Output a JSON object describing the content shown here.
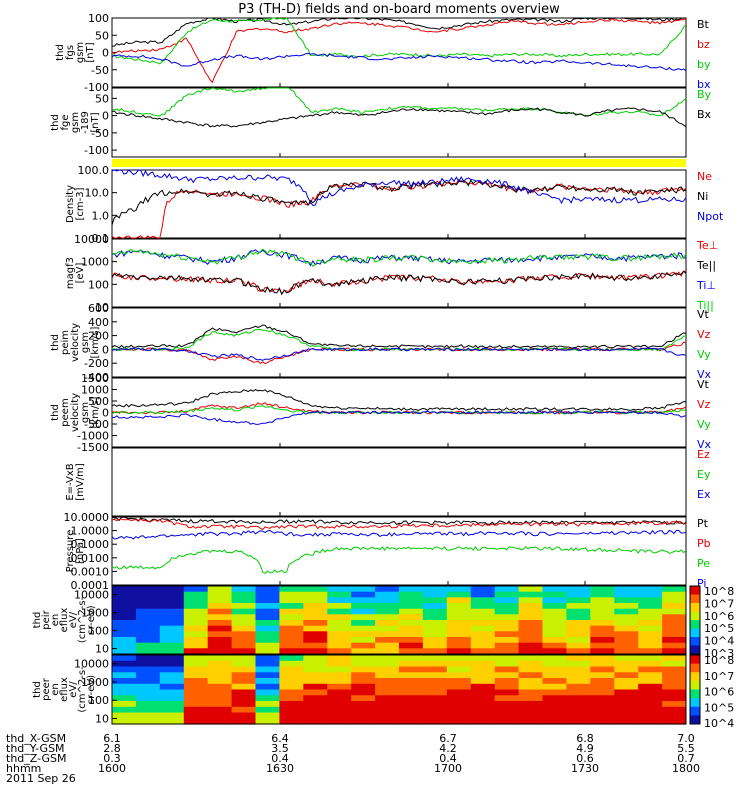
{
  "title": "P3 (TH-D) fields and on-board moments overview",
  "chart_data": {
    "type": "multi-panel-timeseries",
    "x_ticks": [
      "1600",
      "1630",
      "1700",
      "1730",
      "1800"
    ],
    "footer": {
      "rows": [
        {
          "label": "thd_X-GSM",
          "values": [
            "6.1",
            "6.4",
            "6.7",
            "6.8",
            "7.0"
          ]
        },
        {
          "label": "thd_Y-GSM",
          "values": [
            "2.8",
            "3.5",
            "4.2",
            "4.9",
            "5.5"
          ]
        },
        {
          "label": "thd_Z-GSM",
          "values": [
            "0.3",
            "0.4",
            "0.4",
            "0.6",
            "0.7"
          ]
        },
        {
          "label": "hhmm",
          "values": [
            "1600",
            "1630",
            "1700",
            "1730",
            "1800"
          ]
        }
      ],
      "date": "2011 Sep 26"
    },
    "panels": [
      {
        "ylabel": [
          "thd",
          "fgs",
          "gsm",
          "[nT]"
        ],
        "yticks": [
          "100",
          "50",
          "0",
          "-50",
          "-100"
        ],
        "ylim": [
          -100,
          100
        ],
        "series": [
          {
            "name": "Bt",
            "color": "#000000",
            "values": [
              20,
              30,
              30,
              85,
              100,
              90,
              95,
              80,
              90,
              100,
              100,
              95,
              85,
              70,
              80,
              90,
              95,
              95,
              90,
              100,
              100,
              100,
              95,
              100
            ]
          },
          {
            "name": "bz",
            "color": "#e60000",
            "values": [
              0,
              5,
              10,
              40,
              -90,
              60,
              70,
              60,
              70,
              85,
              85,
              80,
              70,
              60,
              70,
              80,
              90,
              85,
              80,
              90,
              95,
              90,
              85,
              95
            ]
          },
          {
            "name": "by",
            "color": "#00cc00",
            "values": [
              -10,
              -20,
              -30,
              60,
              95,
              90,
              95,
              100,
              -10,
              -5,
              -10,
              -5,
              -5,
              -10,
              -5,
              -10,
              -5,
              -5,
              -10,
              -5,
              -5,
              -5,
              -5,
              80
            ]
          },
          {
            "name": "bx",
            "color": "#0000e6",
            "values": [
              -10,
              -10,
              -20,
              -40,
              -20,
              -10,
              -20,
              -10,
              -5,
              -10,
              -15,
              -20,
              -15,
              -10,
              -15,
              -20,
              -25,
              -30,
              -25,
              -30,
              -35,
              -40,
              -45,
              -50
            ]
          }
        ]
      },
      {
        "ylabel": [
          "thd",
          "fge",
          "gsm",
          "-189",
          "[nT]"
        ],
        "yticks": [
          "50",
          "0",
          "-50",
          "-100"
        ],
        "ylim": [
          -120,
          80
        ],
        "series": [
          {
            "name": "By",
            "color": "#00cc00",
            "values": [
              20,
              10,
              0,
              60,
              80,
              70,
              80,
              90,
              10,
              20,
              10,
              20,
              25,
              20,
              20,
              15,
              20,
              20,
              10,
              0,
              10,
              10,
              0,
              50
            ]
          },
          {
            "name": "Bx",
            "color": "#000000",
            "values": [
              10,
              0,
              -10,
              -20,
              -30,
              -30,
              -20,
              -10,
              0,
              10,
              0,
              10,
              20,
              15,
              10,
              5,
              15,
              20,
              10,
              0,
              15,
              20,
              10,
              -30
            ]
          }
        ]
      },
      {
        "ylabel": [
          "Density",
          "[cm-3]"
        ],
        "yticks": [
          "100.0",
          "10.0",
          "1.0",
          "0.1"
        ],
        "ylim": [
          0.1,
          100
        ],
        "series": [
          {
            "name": "Ne",
            "color": "#e60000",
            "values": [
              0.1,
              0.1,
              0.1,
              15,
              8,
              10,
              6,
              3,
              4,
              20,
              25,
              15,
              20,
              25,
              30,
              25,
              15,
              12,
              20,
              15,
              15,
              10,
              12,
              15
            ]
          },
          {
            "name": "Ni",
            "color": "#000000",
            "values": [
              0.5,
              2,
              10,
              12,
              8,
              10,
              6,
              3,
              4,
              20,
              25,
              15,
              20,
              25,
              30,
              25,
              15,
              12,
              20,
              15,
              15,
              10,
              12,
              15
            ]
          },
          {
            "name": "Npot",
            "color": "#0000e6",
            "values": [
              100,
              80,
              60,
              40,
              40,
              45,
              50,
              40,
              3,
              10,
              20,
              30,
              25,
              30,
              40,
              35,
              20,
              8,
              5,
              5,
              5,
              5,
              5,
              5
            ]
          }
        ]
      },
      {
        "ylabel": [
          "magf3",
          "[eV]"
        ],
        "yticks": [
          "10000",
          "1000",
          "100",
          "10"
        ],
        "ylim": [
          10,
          10000
        ],
        "series": [
          {
            "name": "Te⊥",
            "color": "#e60000",
            "values": [
              250,
              200,
              200,
              180,
              150,
              150,
              60,
              50,
              150,
              100,
              150,
              200,
              200,
              180,
              120,
              150,
              150,
              200,
              220,
              250,
              200,
              200,
              250,
              300
            ]
          },
          {
            "name": "Te||",
            "color": "#000000",
            "values": [
              250,
              200,
              200,
              180,
              150,
              150,
              60,
              50,
              150,
              100,
              150,
              200,
              200,
              180,
              120,
              150,
              150,
              200,
              220,
              250,
              200,
              200,
              250,
              300
            ]
          },
          {
            "name": "Ti⊥",
            "color": "#0000e6",
            "values": [
              2000,
              3000,
              2000,
              1500,
              1000,
              1500,
              3000,
              2000,
              800,
              1500,
              1200,
              1500,
              1500,
              1200,
              1000,
              1200,
              1200,
              1500,
              1500,
              1800,
              1500,
              1500,
              1800,
              2000
            ]
          },
          {
            "name": "Ti||",
            "color": "#00cc00",
            "values": [
              2000,
              3000,
              2000,
              1500,
              1000,
              1500,
              3000,
              2000,
              800,
              1500,
              1200,
              1500,
              1500,
              1200,
              1000,
              1200,
              1200,
              1500,
              1500,
              1800,
              1500,
              1500,
              1800,
              2000
            ]
          }
        ]
      },
      {
        "ylabel": [
          "thd",
          "peim",
          "velocity",
          "gsm",
          "[km/s]"
        ],
        "yticks": [
          "600",
          "400",
          "200",
          "0",
          "-200",
          "-400"
        ],
        "ylim": [
          -400,
          600
        ],
        "series": [
          {
            "name": "Vt",
            "color": "#000000",
            "values": [
              40,
              40,
              50,
              50,
              300,
              250,
              350,
              250,
              80,
              50,
              50,
              50,
              40,
              40,
              50,
              40,
              40,
              40,
              40,
              40,
              40,
              40,
              40,
              250
            ]
          },
          {
            "name": "Vz",
            "color": "#e60000",
            "values": [
              0,
              0,
              0,
              -20,
              -150,
              -100,
              -200,
              -100,
              0,
              0,
              0,
              0,
              0,
              0,
              0,
              0,
              0,
              0,
              0,
              0,
              0,
              0,
              0,
              100
            ]
          },
          {
            "name": "Vy",
            "color": "#00cc00",
            "values": [
              0,
              0,
              0,
              30,
              250,
              200,
              300,
              200,
              50,
              0,
              0,
              0,
              0,
              0,
              0,
              0,
              0,
              0,
              0,
              0,
              0,
              0,
              0,
              200
            ]
          },
          {
            "name": "Vx",
            "color": "#0000e6",
            "values": [
              0,
              0,
              0,
              -20,
              -100,
              -80,
              -150,
              -80,
              0,
              0,
              0,
              0,
              0,
              0,
              0,
              0,
              0,
              0,
              0,
              0,
              0,
              0,
              0,
              -100
            ]
          }
        ]
      },
      {
        "ylabel": [
          "thd",
          "peem",
          "velocity",
          "gsm",
          "[km/s]"
        ],
        "yticks": [
          "1500",
          "1000",
          "500",
          "0",
          "-500",
          "-1000",
          "-1500"
        ],
        "ylim": [
          -1500,
          1500
        ],
        "series": [
          {
            "name": "Vt",
            "color": "#000000",
            "values": [
              300,
              300,
              350,
              400,
              800,
              900,
              1000,
              700,
              300,
              200,
              200,
              150,
              150,
              150,
              150,
              150,
              150,
              150,
              150,
              150,
              150,
              150,
              200,
              500
            ]
          },
          {
            "name": "Vz",
            "color": "#e60000",
            "values": [
              0,
              0,
              0,
              50,
              300,
              200,
              400,
              200,
              50,
              0,
              0,
              0,
              0,
              0,
              0,
              0,
              0,
              0,
              0,
              0,
              0,
              0,
              0,
              200
            ]
          },
          {
            "name": "Vy",
            "color": "#00cc00",
            "values": [
              0,
              0,
              0,
              50,
              200,
              100,
              300,
              100,
              0,
              0,
              0,
              0,
              0,
              0,
              0,
              0,
              0,
              0,
              0,
              0,
              0,
              0,
              0,
              100
            ]
          },
          {
            "name": "Vx",
            "color": "#0000e6",
            "values": [
              -200,
              -200,
              -200,
              -100,
              -300,
              -400,
              -500,
              -200,
              0,
              0,
              0,
              0,
              0,
              0,
              0,
              0,
              0,
              0,
              0,
              0,
              0,
              0,
              0,
              -200
            ]
          }
        ]
      },
      {
        "ylabel": [
          "E=-VxB",
          "[mV/m]"
        ],
        "yticks": [],
        "ylim": [
          0,
          1
        ],
        "series": [
          {
            "name": "Ez",
            "color": "#e60000",
            "values": []
          },
          {
            "name": "Ey",
            "color": "#00cc00",
            "values": []
          },
          {
            "name": "Ex",
            "color": "#0000e6",
            "values": []
          }
        ]
      },
      {
        "ylabel": [
          "Pressure",
          "[nPa]"
        ],
        "yticks": [
          "10.0000",
          "1.0000",
          "0.1000",
          "0.0100",
          "0.0010",
          "0.0001"
        ],
        "ylim": [
          0.0001,
          10
        ],
        "series": [
          {
            "name": "Pt",
            "color": "#000000",
            "values": [
              8,
              7,
              6,
              5,
              5,
              5,
              4,
              5,
              5,
              4,
              4,
              4,
              4,
              4,
              4,
              4,
              4,
              4,
              4,
              4,
              4,
              4,
              4,
              4
            ]
          },
          {
            "name": "Pb",
            "color": "#e60000",
            "values": [
              7,
              6,
              5,
              2,
              2,
              2,
              1.5,
              2,
              2,
              2,
              2,
              2,
              2.5,
              2.5,
              2.5,
              3,
              3,
              3,
              3,
              3,
              3.5,
              3.5,
              4,
              4
            ]
          },
          {
            "name": "Pe",
            "color": "#00cc00",
            "values": [
              0.002,
              0.002,
              0.002,
              0.02,
              0.03,
              0.03,
              0.001,
              0.001,
              0.02,
              0.05,
              0.05,
              0.05,
              0.05,
              0.05,
              0.05,
              0.05,
              0.05,
              0.05,
              0.05,
              0.04,
              0.04,
              0.03,
              0.03,
              0.03
            ]
          },
          {
            "name": "Pi",
            "color": "#0000e6",
            "values": [
              0.3,
              0.3,
              0.4,
              0.5,
              0.6,
              0.6,
              0.9,
              0.6,
              0.5,
              0.6,
              0.5,
              0.5,
              0.6,
              0.6,
              0.6,
              0.7,
              0.7,
              0.6,
              0.6,
              0.6,
              0.7,
              0.7,
              0.8,
              0.8
            ]
          }
        ]
      }
    ],
    "spectrograms": [
      {
        "ylabel": [
          "thd",
          "peir",
          "en",
          "eflux",
          "eV/",
          "(cm^2-s-",
          "sr-eV)"
        ],
        "yticks": [
          "10000",
          "1000",
          "100",
          "10"
        ],
        "colorbar_labels": [
          "10^8",
          "10^7",
          "10^6",
          "10^5",
          "10^4",
          "10^3"
        ],
        "columns": [
          0.15,
          0.15,
          0.2,
          0.55,
          0.75,
          0.6,
          0.3,
          0.7,
          0.75,
          0.6,
          0.5,
          0.55,
          0.6,
          0.55,
          0.7,
          0.55,
          0.6,
          0.75,
          0.6,
          0.55,
          0.7,
          0.6,
          0.55,
          0.75
        ]
      },
      {
        "ylabel": [
          "thd",
          "peer",
          "en",
          "eflux",
          "eV/",
          "(cm^2-s-",
          "sr-eV)"
        ],
        "yticks": [
          "10000",
          "1000",
          "100",
          "10"
        ],
        "colorbar_labels": [
          "10^8",
          "10^7",
          "10^6",
          "10^5",
          "10^4"
        ],
        "columns": [
          0.3,
          0.3,
          0.3,
          0.8,
          0.8,
          0.8,
          0.35,
          0.8,
          0.85,
          0.85,
          0.85,
          0.85,
          0.85,
          0.85,
          0.85,
          0.85,
          0.85,
          0.85,
          0.85,
          0.85,
          0.85,
          0.85,
          0.85,
          0.85
        ]
      }
    ]
  }
}
